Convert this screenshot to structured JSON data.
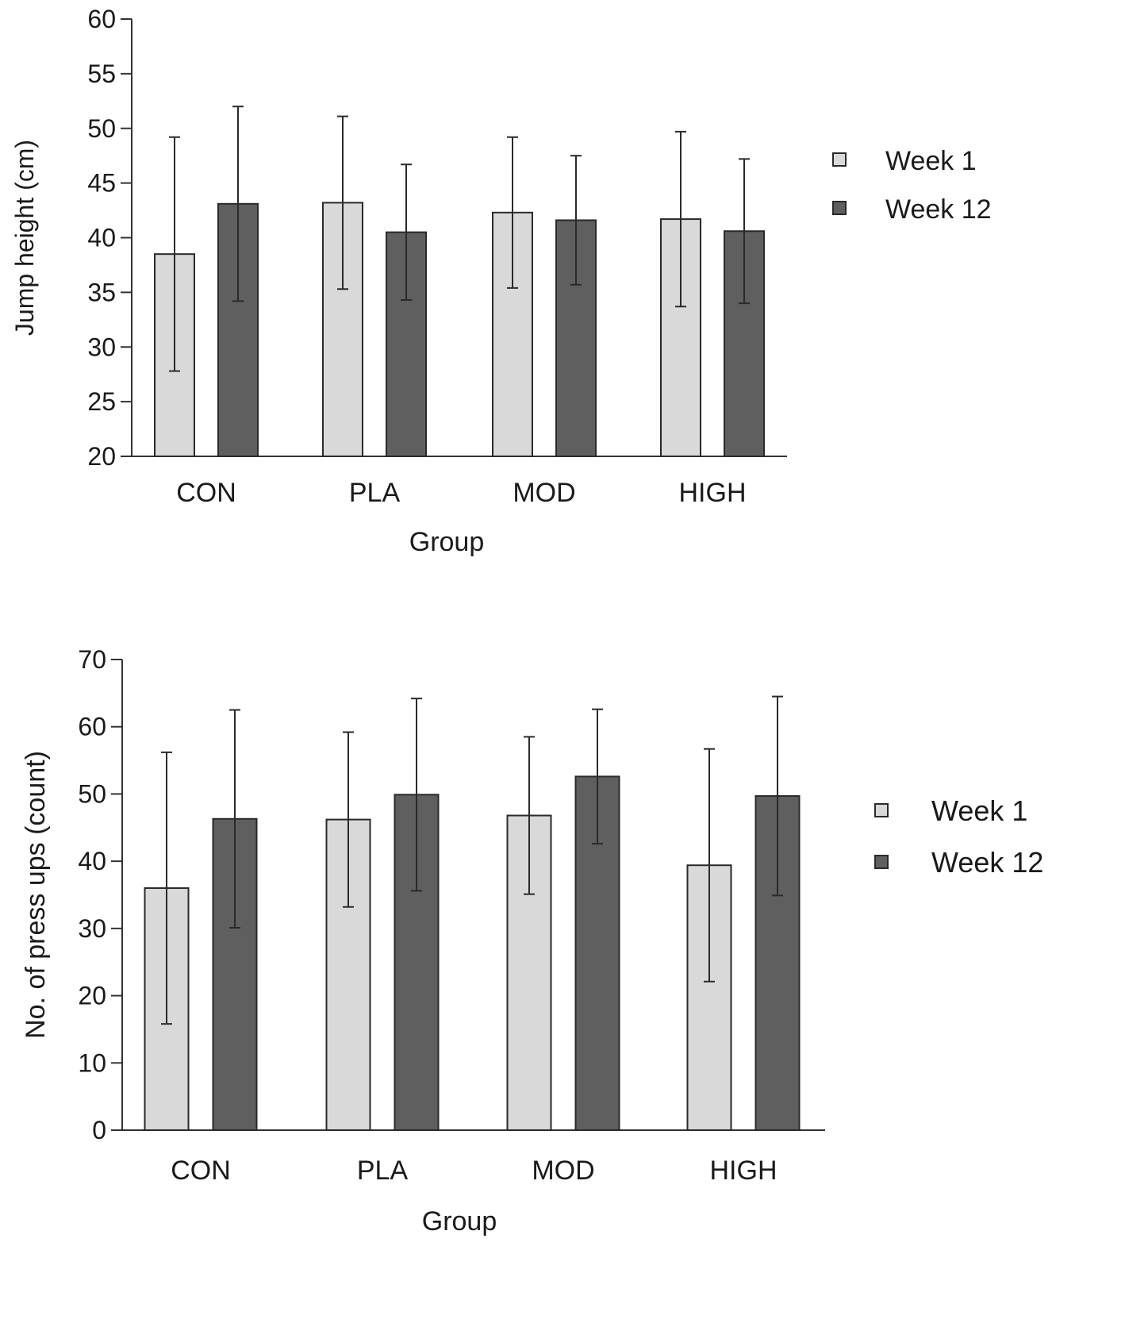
{
  "colors": {
    "week1_fill": "#d9d9d9",
    "week12_fill": "#5f5f5f",
    "stroke": "#2a2a2a",
    "axis": "#333333",
    "text": "#1a1a1a"
  },
  "chart_data": [
    {
      "type": "bar",
      "categories": [
        "CON",
        "PLA",
        "MOD",
        "HIGH"
      ],
      "series": [
        {
          "name": "Week 1",
          "values": [
            38.5,
            43.2,
            42.3,
            41.7
          ],
          "error": [
            10.7,
            7.9,
            6.9,
            8.0
          ]
        },
        {
          "name": "Week 12",
          "values": [
            43.1,
            40.5,
            41.6,
            40.6
          ],
          "error": [
            8.9,
            6.2,
            5.9,
            6.6
          ]
        }
      ],
      "title": "",
      "xlabel": "Group",
      "ylabel": "Jump height (cm)",
      "ylim": [
        20,
        60
      ],
      "yticks": [
        20,
        25,
        30,
        35,
        40,
        45,
        50,
        55,
        60
      ],
      "legend": "right",
      "grid": false
    },
    {
      "type": "bar",
      "categories": [
        "CON",
        "PLA",
        "MOD",
        "HIGH"
      ],
      "series": [
        {
          "name": "Week 1",
          "values": [
            36.0,
            46.2,
            46.8,
            39.4
          ],
          "error": [
            20.2,
            13.0,
            11.7,
            17.3
          ]
        },
        {
          "name": "Week 12",
          "values": [
            46.3,
            49.9,
            52.6,
            49.7
          ],
          "error": [
            16.2,
            14.3,
            10.0,
            14.8
          ]
        }
      ],
      "title": "",
      "xlabel": "Group",
      "ylabel": "No. of press ups (count)",
      "ylim": [
        0,
        70
      ],
      "yticks": [
        0,
        10,
        20,
        30,
        40,
        50,
        60,
        70
      ],
      "legend": "right",
      "grid": false
    }
  ]
}
